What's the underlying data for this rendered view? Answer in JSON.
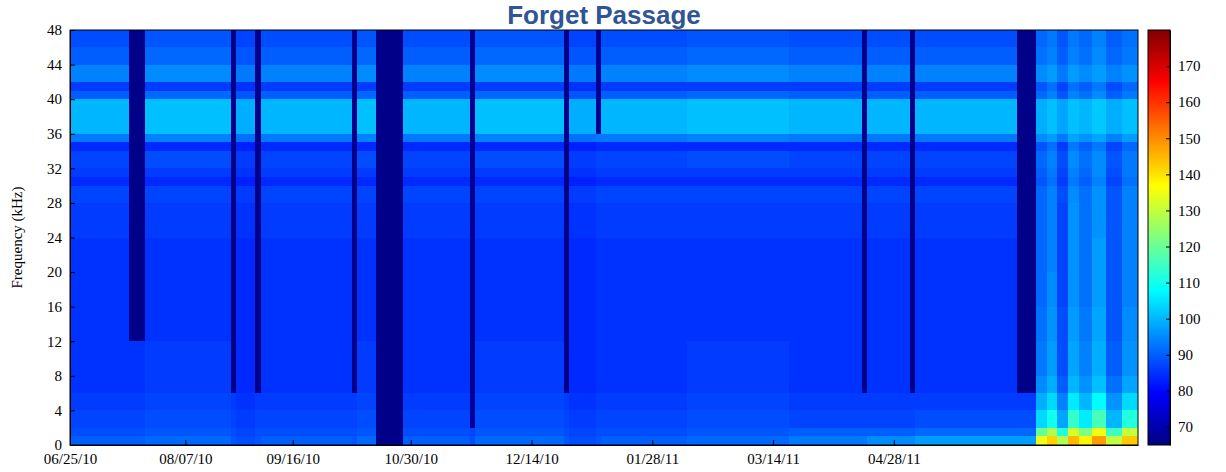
{
  "chart_data": {
    "type": "heatmap",
    "title": "Forget Passage",
    "ylabel": "Frequency (kHz)",
    "xlim": [
      "2010-06-25",
      "2011-07-28"
    ],
    "xticks": [
      {
        "value": "2010-06-25",
        "label": "06/25/10"
      },
      {
        "value": "2010-08-07",
        "label": "08/07/10"
      },
      {
        "value": "2010-09-16",
        "label": "09/16/10"
      },
      {
        "value": "2010-10-30",
        "label": "10/30/10"
      },
      {
        "value": "2010-12-14",
        "label": "12/14/10"
      },
      {
        "value": "2011-01-28",
        "label": "01/28/11"
      },
      {
        "value": "2011-03-14",
        "label": "03/14/11"
      },
      {
        "value": "2011-04-28",
        "label": "04/28/11"
      }
    ],
    "ylim": [
      0,
      48
    ],
    "yticks": [
      0,
      4,
      8,
      12,
      16,
      20,
      24,
      28,
      32,
      36,
      40,
      44,
      48
    ],
    "x_bins": [
      "2010-06-25",
      "2010-07-17",
      "2010-07-23",
      "2010-08-24",
      "2010-08-26",
      "2010-09-02",
      "2010-09-04",
      "2010-10-08",
      "2010-10-10",
      "2010-10-17",
      "2010-10-27",
      "2010-11-21",
      "2010-11-23",
      "2010-12-26",
      "2010-12-28",
      "2011-01-07",
      "2011-01-09",
      "2011-02-10",
      "2011-03-20",
      "2011-04-16",
      "2011-04-18",
      "2011-05-04",
      "2011-05-06",
      "2011-06-13",
      "2011-06-20",
      "2011-06-24",
      "2011-06-28",
      "2011-07-02",
      "2011-07-06",
      "2011-07-11",
      "2011-07-16",
      "2011-07-22",
      "2011-07-28"
    ],
    "y_bins": [
      0,
      1,
      2,
      4,
      6,
      8,
      12,
      16,
      20,
      24,
      28,
      30,
      31,
      32,
      34,
      35,
      36,
      40,
      41,
      42,
      44,
      46,
      48
    ],
    "values": [
      [
        90,
        88,
        87,
        86,
        85,
        85,
        85,
        85,
        85,
        86,
        87,
        84,
        86,
        87,
        84,
        93,
        100,
        90,
        86,
        94,
        90,
        88
      ],
      [
        90,
        88,
        87,
        86,
        85,
        85,
        66,
        66,
        66,
        66,
        66,
        66,
        66,
        66,
        66,
        66,
        66,
        66,
        66,
        66,
        66,
        66
      ],
      [
        91,
        89,
        88,
        87,
        86,
        86,
        85,
        85,
        85,
        86,
        87,
        84,
        86,
        88,
        84,
        94,
        101,
        91,
        86,
        95,
        91,
        89
      ],
      [
        89,
        88,
        87,
        86,
        66,
        66,
        66,
        66,
        66,
        66,
        66,
        66,
        66,
        66,
        66,
        66,
        66,
        66,
        66,
        66,
        66,
        66
      ],
      [
        88,
        87,
        86,
        85,
        84,
        84,
        84,
        84,
        84,
        85,
        86,
        83,
        85,
        86,
        83,
        92,
        99,
        89,
        85,
        93,
        89,
        87
      ],
      [
        89,
        88,
        87,
        86,
        66,
        66,
        66,
        66,
        66,
        66,
        66,
        66,
        66,
        66,
        66,
        66,
        66,
        66,
        66,
        66,
        66,
        66
      ],
      [
        90,
        88,
        87,
        86,
        85,
        85,
        85,
        85,
        85,
        86,
        87,
        84,
        86,
        87,
        84,
        93,
        100,
        90,
        86,
        94,
        90,
        88
      ],
      [
        89,
        88,
        87,
        86,
        66,
        66,
        66,
        66,
        66,
        66,
        66,
        66,
        66,
        66,
        66,
        66,
        66,
        66,
        66,
        66,
        66,
        66
      ],
      [
        91,
        89,
        88,
        87,
        86,
        86,
        85,
        85,
        85,
        86,
        87,
        84,
        86,
        88,
        84,
        94,
        101,
        91,
        86,
        95,
        91,
        89
      ],
      [
        66,
        66,
        66,
        66,
        66,
        66,
        66,
        66,
        66,
        66,
        66,
        66,
        66,
        66,
        66,
        66,
        66,
        66,
        66,
        66,
        66,
        66
      ],
      [
        90,
        88,
        87,
        86,
        85,
        85,
        85,
        85,
        85,
        86,
        87,
        84,
        86,
        87,
        84,
        93,
        100,
        90,
        86,
        94,
        90,
        88
      ],
      [
        88,
        87,
        68,
        68,
        67,
        67,
        67,
        67,
        67,
        67,
        67,
        67,
        67,
        67,
        67,
        67,
        67,
        67,
        67,
        67,
        67,
        67
      ],
      [
        91,
        89,
        88,
        87,
        86,
        86,
        85,
        85,
        85,
        86,
        87,
        84,
        86,
        88,
        84,
        94,
        101,
        91,
        86,
        95,
        91,
        89
      ],
      [
        89,
        88,
        87,
        86,
        66,
        66,
        66,
        66,
        66,
        66,
        66,
        66,
        66,
        66,
        66,
        66,
        66,
        66,
        66,
        66,
        66,
        66
      ],
      [
        88,
        87,
        86,
        85,
        84,
        84,
        84,
        84,
        84,
        85,
        86,
        83,
        85,
        86,
        83,
        92,
        99,
        89,
        85,
        93,
        89,
        87
      ],
      [
        89,
        88,
        87,
        86,
        85,
        85,
        85,
        85,
        85,
        86,
        87,
        84,
        86,
        87,
        84,
        93,
        67,
        67,
        67,
        67,
        67,
        67
      ],
      [
        90,
        88,
        87,
        86,
        85,
        85,
        85,
        85,
        85,
        86,
        87,
        84,
        86,
        87,
        84,
        93,
        100,
        90,
        86,
        94,
        90,
        88
      ],
      [
        91,
        89,
        88,
        87,
        86,
        86,
        85,
        85,
        85,
        86,
        87,
        84,
        86,
        88,
        84,
        94,
        101,
        91,
        86,
        95,
        91,
        89
      ],
      [
        93,
        90,
        87,
        86,
        85,
        85,
        85,
        85,
        85,
        86,
        87,
        84,
        86,
        87,
        84,
        93,
        100,
        90,
        86,
        94,
        90,
        88
      ],
      [
        93,
        90,
        87,
        86,
        66,
        66,
        66,
        66,
        66,
        66,
        66,
        66,
        66,
        66,
        66,
        66,
        66,
        66,
        66,
        66,
        66,
        66
      ],
      [
        95,
        90,
        87,
        86,
        85,
        85,
        85,
        85,
        85,
        86,
        87,
        84,
        86,
        87,
        84,
        93,
        100,
        90,
        86,
        94,
        90,
        88
      ],
      [
        95,
        90,
        87,
        86,
        66,
        66,
        66,
        66,
        66,
        66,
        66,
        66,
        66,
        66,
        66,
        66,
        66,
        66,
        66,
        66,
        66,
        66
      ],
      [
        97,
        91,
        88,
        86,
        85,
        85,
        85,
        85,
        85,
        86,
        87,
        84,
        86,
        87,
        84,
        93,
        100,
        90,
        86,
        94,
        90,
        88
      ],
      [
        97,
        91,
        88,
        86,
        66,
        66,
        66,
        66,
        66,
        66,
        66,
        66,
        66,
        66,
        66,
        66,
        66,
        66,
        66,
        66,
        66,
        66
      ],
      [
        135,
        120,
        104,
        99,
        95,
        93,
        92,
        91,
        91,
        91,
        91,
        89,
        90,
        91,
        89,
        95,
        99,
        91,
        89,
        95,
        92,
        91
      ],
      [
        142,
        128,
        110,
        104,
        99,
        97,
        96,
        95,
        94,
        94,
        94,
        92,
        93,
        94,
        92,
        97,
        101,
        94,
        92,
        97,
        94,
        93
      ],
      [
        128,
        112,
        98,
        94,
        90,
        88,
        88,
        87,
        87,
        87,
        88,
        86,
        87,
        88,
        86,
        93,
        98,
        89,
        87,
        93,
        90,
        89
      ],
      [
        145,
        132,
        114,
        106,
        100,
        98,
        97,
        96,
        96,
        96,
        95,
        93,
        94,
        95,
        93,
        98,
        101,
        94,
        92,
        97,
        94,
        93
      ],
      [
        138,
        122,
        106,
        100,
        96,
        94,
        93,
        92,
        92,
        92,
        92,
        90,
        91,
        92,
        90,
        96,
        100,
        92,
        90,
        95,
        92,
        91
      ],
      [
        148,
        135,
        116,
        108,
        101,
        99,
        98,
        97,
        97,
        96,
        96,
        94,
        95,
        95,
        93,
        98,
        102,
        95,
        93,
        97,
        95,
        94
      ],
      [
        130,
        115,
        100,
        96,
        92,
        90,
        89,
        89,
        89,
        89,
        89,
        87,
        88,
        89,
        87,
        94,
        99,
        90,
        88,
        94,
        91,
        90
      ],
      [
        143,
        130,
        112,
        104,
        98,
        96,
        95,
        94,
        94,
        94,
        94,
        92,
        93,
        93,
        91,
        97,
        101,
        93,
        91,
        96,
        93,
        92
      ]
    ],
    "colorbar": {
      "range": [
        65,
        180
      ],
      "ticks": [
        70,
        80,
        90,
        100,
        110,
        120,
        130,
        140,
        150,
        160,
        170
      ]
    }
  }
}
